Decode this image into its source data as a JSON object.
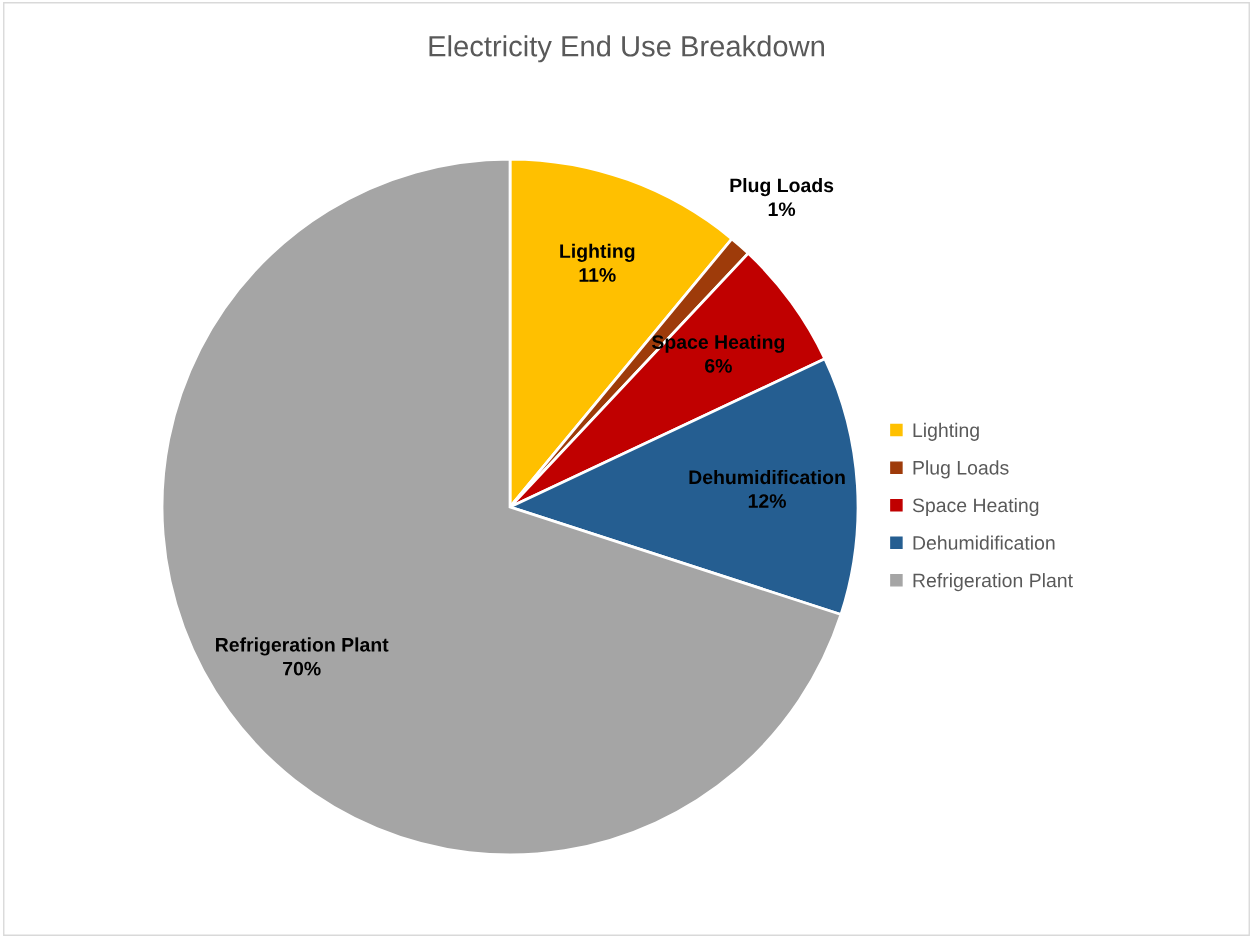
{
  "chart_data": {
    "type": "pie",
    "title": "Electricity End Use Breakdown",
    "categories": [
      "Lighting",
      "Plug Loads",
      "Space Heating",
      "Dehumidification",
      "Refrigeration Plant"
    ],
    "values": [
      11,
      1,
      6,
      12,
      70
    ],
    "value_labels": [
      "11%",
      "1%",
      "6%",
      "12%",
      "70%"
    ],
    "colors": [
      "#ffc000",
      "#9e3b0a",
      "#c00000",
      "#255e91",
      "#a5a5a5"
    ],
    "legend": "right"
  }
}
